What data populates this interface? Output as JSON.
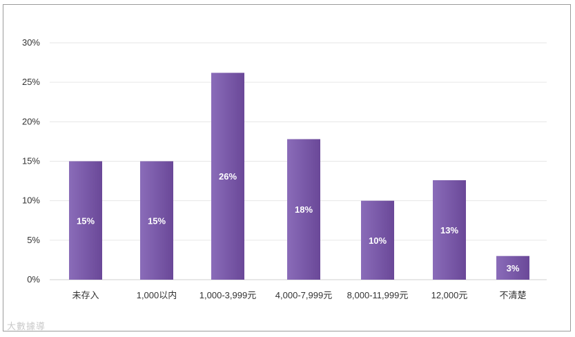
{
  "chart_data": {
    "type": "bar",
    "categories": [
      "未存入",
      "1,000以内",
      "1,000-3,999元",
      "4,000-7,999元",
      "8,000-11,999元",
      "12,000元",
      "不清楚"
    ],
    "values": [
      15,
      15,
      26.2,
      17.8,
      10,
      12.6,
      3
    ],
    "value_labels": [
      "15%",
      "15%",
      "26%",
      "18%",
      "10%",
      "13%",
      "3%"
    ],
    "ylim": [
      0,
      30
    ],
    "yticks": [
      "0%",
      "5%",
      "10%",
      "15%",
      "20%",
      "25%",
      "30%"
    ],
    "grid": true,
    "title": "",
    "xlabel": "",
    "ylabel": "",
    "colors": {
      "bar_dark": "#6b4a9c",
      "bar_light": "#8a68b8",
      "grid": "#e6e6e6"
    }
  },
  "watermark": "大數據導"
}
